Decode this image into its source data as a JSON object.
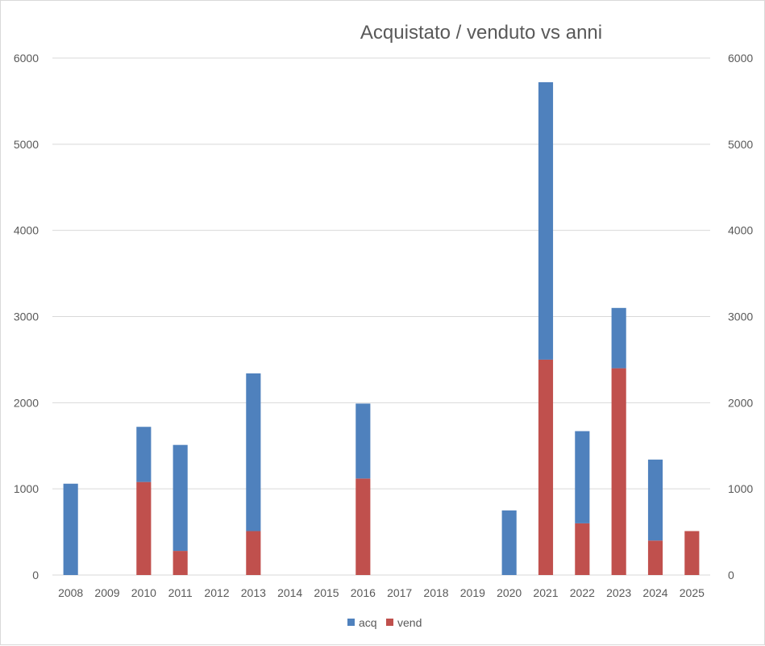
{
  "chart_data": {
    "type": "bar",
    "stacked": true,
    "title": "Acquistato / venduto vs anni",
    "xlabel": "",
    "ylabel": "",
    "categories": [
      "2008",
      "2009",
      "2010",
      "2011",
      "2012",
      "2013",
      "2014",
      "2015",
      "2016",
      "2017",
      "2018",
      "2019",
      "2020",
      "2021",
      "2022",
      "2023",
      "2024",
      "2025"
    ],
    "series": [
      {
        "name": "vend",
        "color": "#c0504d",
        "values": [
          0,
          0,
          1080,
          280,
          0,
          510,
          0,
          0,
          1120,
          0,
          0,
          0,
          0,
          2500,
          600,
          2400,
          400,
          510
        ]
      },
      {
        "name": "acq",
        "color": "#4f81bd",
        "values": [
          1060,
          0,
          640,
          1230,
          0,
          1830,
          0,
          0,
          870,
          0,
          0,
          0,
          750,
          3220,
          1070,
          700,
          940,
          0
        ]
      }
    ],
    "ylim": [
      0,
      6000
    ],
    "yticks": [
      0,
      1000,
      2000,
      3000,
      4000,
      5000,
      6000
    ],
    "secondary_yticks": [
      0,
      1000,
      2000,
      3000,
      4000,
      5000,
      6000
    ],
    "grid": true,
    "legend": {
      "position": "bottom",
      "entries": [
        {
          "name": "acq",
          "color": "#4f81bd"
        },
        {
          "name": "vend",
          "color": "#c0504d"
        }
      ]
    }
  }
}
